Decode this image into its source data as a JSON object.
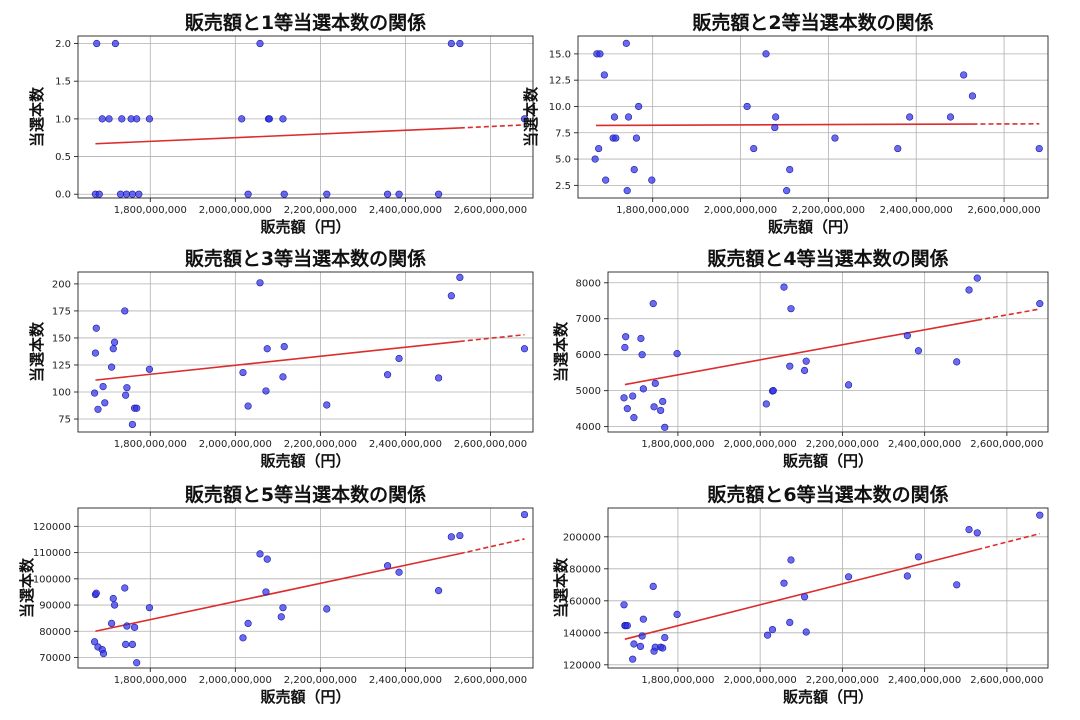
{
  "xlabel": "販売額（円）",
  "ylabel": "当選本数",
  "chart_data": [
    {
      "type": "scatter",
      "title": "販売額と1等当選本数の関係",
      "xlabel": "販売額（円）",
      "ylabel": "当選本数",
      "xlim": [
        1630000000,
        2700000000
      ],
      "ylim": [
        -0.05,
        2.1
      ],
      "xticks": [
        1800000000,
        2000000000,
        2200000000,
        2400000000,
        2600000000
      ],
      "xtick_labels": [
        "1,800,000,000",
        "2,000,000,000",
        "2,200,000,000",
        "2,400,000,000",
        "2,600,000,000"
      ],
      "yticks": [
        0,
        0.5,
        1.0,
        1.5,
        2.0
      ],
      "ytick_labels": [
        "0.0",
        "0.5",
        "1.0",
        "1.5",
        "2.0"
      ],
      "x": [
        1671000000,
        1674000000,
        1680000000,
        1687000000,
        1703000000,
        1718000000,
        1730000000,
        1733000000,
        1744000000,
        1755000000,
        1758000000,
        1768000000,
        1773000000,
        1798000000,
        2015000000,
        2030000000,
        2058000000,
        2078000000,
        2080000000,
        2112000000,
        2115000000,
        2215000000,
        2358000000,
        2385000000,
        2478000000,
        2508000000,
        2528000000,
        2680000000
      ],
      "y": [
        0,
        2,
        0,
        1,
        1,
        2,
        0,
        1,
        0,
        1,
        0,
        1,
        0,
        1,
        1,
        0,
        2,
        1,
        1,
        1,
        0,
        0,
        0,
        0,
        0,
        2,
        2,
        1
      ],
      "trend": {
        "x_start": 1671000000,
        "y_start": 0.67,
        "x_solid_end": 2528000000,
        "y_solid_end": 0.88,
        "x_end": 2680000000,
        "y_end": 0.92
      }
    },
    {
      "type": "scatter",
      "title": "販売額と2等当選本数の関係",
      "xlabel": "販売額（円）",
      "ylabel": "当選本数",
      "xlim": [
        1630000000,
        2700000000
      ],
      "ylim": [
        1.3,
        16.7
      ],
      "xticks": [
        1800000000,
        2000000000,
        2200000000,
        2400000000,
        2600000000
      ],
      "xtick_labels": [
        "1,800,000,000",
        "2,000,000,000",
        "2,200,000,000",
        "2,400,000,000",
        "2,600,000,000"
      ],
      "yticks": [
        2.5,
        5.0,
        7.5,
        10.0,
        12.5,
        15.0
      ],
      "ytick_labels": [
        "2.5",
        "5.0",
        "7.5",
        "10.0",
        "12.5",
        "15.0"
      ],
      "x": [
        1669000000,
        1673000000,
        1677000000,
        1680000000,
        1690000000,
        1693000000,
        1710000000,
        1713000000,
        1716000000,
        1740000000,
        1742000000,
        1745000000,
        1758000000,
        1763000000,
        1768000000,
        1798000000,
        2015000000,
        2030000000,
        2058000000,
        2078000000,
        2080000000,
        2105000000,
        2112000000,
        2215000000,
        2358000000,
        2385000000,
        2478000000,
        2508000000,
        2528000000,
        2680000000
      ],
      "y": [
        5,
        15,
        6,
        15,
        13,
        3,
        7,
        9,
        7,
        16,
        2,
        9,
        4,
        7,
        10,
        3,
        10,
        6,
        15,
        8,
        9,
        2,
        4,
        7,
        6,
        9,
        9,
        13,
        11,
        6
      ],
      "trend": {
        "x_start": 1671000000,
        "y_start": 8.2,
        "x_solid_end": 2528000000,
        "y_solid_end": 8.33,
        "x_end": 2680000000,
        "y_end": 8.35
      }
    },
    {
      "type": "scatter",
      "title": "販売額と3等当選本数の関係",
      "xlabel": "販売額（円）",
      "ylabel": "当選本数",
      "xlim": [
        1630000000,
        2700000000
      ],
      "ylim": [
        63,
        211
      ],
      "xticks": [
        1800000000,
        2000000000,
        2200000000,
        2400000000,
        2600000000
      ],
      "xtick_labels": [
        "1,800,000,000",
        "2,000,000,000",
        "2,200,000,000",
        "2,400,000,000",
        "2,600,000,000"
      ],
      "yticks": [
        75,
        100,
        125,
        150,
        175,
        200
      ],
      "ytick_labels": [
        "75",
        "100",
        "125",
        "150",
        "175",
        "200"
      ],
      "x": [
        1669000000,
        1671000000,
        1673000000,
        1677000000,
        1689000000,
        1693000000,
        1709000000,
        1713000000,
        1716000000,
        1740000000,
        1742000000,
        1745000000,
        1758000000,
        1763000000,
        1768000000,
        1798000000,
        2018000000,
        2030000000,
        2058000000,
        2072000000,
        2075000000,
        2112000000,
        2115000000,
        2215000000,
        2358000000,
        2385000000,
        2478000000,
        2508000000,
        2528000000,
        2680000000
      ],
      "y": [
        99,
        136,
        159,
        84,
        105,
        90,
        123,
        140,
        146,
        175,
        97,
        104,
        70,
        85,
        85,
        121,
        118,
        87,
        201,
        101,
        140,
        114,
        142,
        88,
        116,
        131,
        113,
        189,
        206,
        140
      ],
      "trend": {
        "x_start": 1671000000,
        "y_start": 111,
        "x_solid_end": 2528000000,
        "y_solid_end": 146.8,
        "x_end": 2680000000,
        "y_end": 153
      }
    },
    {
      "type": "scatter",
      "title": "販売額と4等当選本数の関係",
      "xlabel": "販売額（円）",
      "ylabel": "当選本数",
      "xlim": [
        1630000000,
        2700000000
      ],
      "ylim": [
        3850,
        8300
      ],
      "xticks": [
        1800000000,
        2000000000,
        2200000000,
        2400000000,
        2600000000
      ],
      "xtick_labels": [
        "1,800,000,000",
        "2,000,000,000",
        "2,200,000,000",
        "2,400,000,000",
        "2,600,000,000"
      ],
      "yticks": [
        4000,
        5000,
        6000,
        7000,
        8000
      ],
      "ytick_labels": [
        "4000",
        "5000",
        "6000",
        "7000",
        "8000"
      ],
      "x": [
        1669000000,
        1671000000,
        1673000000,
        1677000000,
        1690000000,
        1693000000,
        1710000000,
        1713000000,
        1716000000,
        1740000000,
        1742000000,
        1745000000,
        1758000000,
        1763000000,
        1768000000,
        1798000000,
        2015000000,
        2030000000,
        2032000000,
        2058000000,
        2072000000,
        2075000000,
        2108000000,
        2112000000,
        2215000000,
        2358000000,
        2385000000,
        2478000000,
        2508000000,
        2528000000,
        2680000000
      ],
      "y": [
        4800,
        6200,
        6500,
        4500,
        4850,
        4250,
        6450,
        6000,
        5050,
        7420,
        4550,
        5200,
        4450,
        4700,
        3980,
        6030,
        4630,
        4990,
        5000,
        7880,
        5680,
        7280,
        5560,
        5820,
        5160,
        6530,
        6110,
        5800,
        7800,
        8130,
        7420
      ],
      "trend": {
        "x_start": 1671000000,
        "y_start": 5170,
        "x_solid_end": 2528000000,
        "y_solid_end": 6960,
        "x_end": 2680000000,
        "y_end": 7270
      }
    },
    {
      "type": "scatter",
      "title": "販売額と5等当選本数の関係",
      "xlabel": "販売額（円）",
      "ylabel": "当選本数",
      "xlim": [
        1630000000,
        2700000000
      ],
      "ylim": [
        66000,
        127000
      ],
      "xticks": [
        1800000000,
        2000000000,
        2200000000,
        2400000000,
        2600000000
      ],
      "xtick_labels": [
        "1,800,000,000",
        "2,000,000,000",
        "2,200,000,000",
        "2,400,000,000",
        "2,600,000,000"
      ],
      "yticks": [
        70000,
        80000,
        90000,
        100000,
        110000,
        120000
      ],
      "ytick_labels": [
        "70000",
        "80000",
        "90000",
        "100000",
        "110000",
        "120000"
      ],
      "x": [
        1669000000,
        1671000000,
        1673000000,
        1677000000,
        1687000000,
        1690000000,
        1709000000,
        1713000000,
        1716000000,
        1740000000,
        1742000000,
        1745000000,
        1758000000,
        1763000000,
        1768000000,
        1798000000,
        2018000000,
        2030000000,
        2058000000,
        2072000000,
        2075000000,
        2108000000,
        2112000000,
        2215000000,
        2358000000,
        2385000000,
        2478000000,
        2508000000,
        2528000000,
        2680000000
      ],
      "y": [
        76000,
        94000,
        94500,
        74000,
        73000,
        71500,
        83000,
        92500,
        90000,
        96500,
        75000,
        82000,
        75000,
        81500,
        68000,
        89000,
        77500,
        83000,
        109500,
        95000,
        107500,
        85500,
        89000,
        88500,
        105000,
        102500,
        95500,
        116000,
        116500,
        124500
      ],
      "trend": {
        "x_start": 1671000000,
        "y_start": 80000,
        "x_solid_end": 2528000000,
        "y_solid_end": 109600,
        "x_end": 2680000000,
        "y_end": 115200
      }
    },
    {
      "type": "scatter",
      "title": "販売額と6等当選本数の関係",
      "xlabel": "販売額（円）",
      "ylabel": "当選本数",
      "xlim": [
        1630000000,
        2700000000
      ],
      "ylim": [
        118000,
        218000
      ],
      "xticks": [
        1800000000,
        2000000000,
        2200000000,
        2400000000,
        2600000000
      ],
      "xtick_labels": [
        "1,800,000,000",
        "2,000,000,000",
        "2,200,000,000",
        "2,400,000,000",
        "2,600,000,000"
      ],
      "yticks": [
        120000,
        140000,
        160000,
        180000,
        200000
      ],
      "ytick_labels": [
        "120000",
        "140000",
        "160000",
        "180000",
        "200000"
      ],
      "x": [
        1669000000,
        1671000000,
        1673000000,
        1677000000,
        1690000000,
        1693000000,
        1709000000,
        1713000000,
        1716000000,
        1740000000,
        1742000000,
        1745000000,
        1758000000,
        1763000000,
        1768000000,
        1798000000,
        2018000000,
        2030000000,
        2058000000,
        2072000000,
        2075000000,
        2108000000,
        2112000000,
        2215000000,
        2358000000,
        2385000000,
        2478000000,
        2508000000,
        2528000000,
        2680000000
      ],
      "y": [
        157500,
        144500,
        144500,
        144500,
        123500,
        133000,
        131500,
        138000,
        148500,
        169000,
        128500,
        131000,
        131000,
        130500,
        137000,
        151500,
        138500,
        142000,
        171000,
        146500,
        185500,
        162500,
        140500,
        175000,
        175500,
        187500,
        170000,
        204500,
        202500,
        213500
      ],
      "trend": {
        "x_start": 1671000000,
        "y_start": 136000,
        "x_solid_end": 2528000000,
        "y_solid_end": 192000,
        "x_end": 2680000000,
        "y_end": 202000
      }
    }
  ]
}
